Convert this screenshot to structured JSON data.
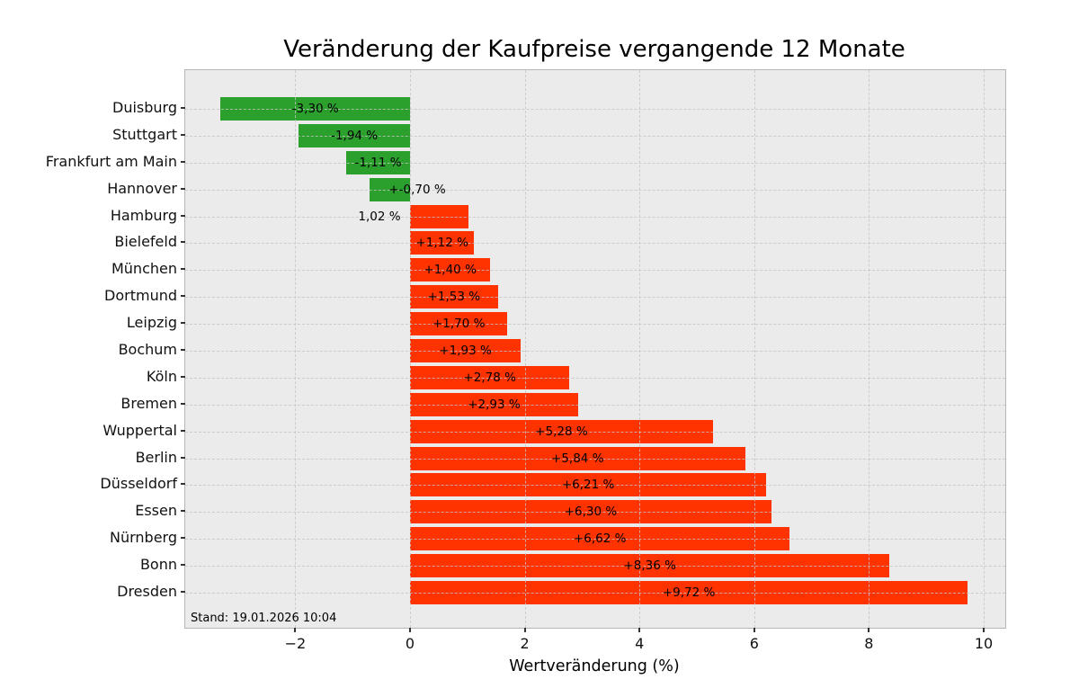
{
  "chart_data": {
    "type": "bar",
    "orientation": "horizontal",
    "title": "Veränderung der Kaufpreise vergangende 12 Monate",
    "xlabel": "Wertveränderung (%)",
    "ylabel": "",
    "footnote": "Stand: 19.01.2026 10:04",
    "xlim": [
      -3.92,
      10.38
    ],
    "xticks": [
      -2,
      0,
      2,
      4,
      6,
      8,
      10
    ],
    "xtick_labels": [
      "−2",
      "0",
      "2",
      "4",
      "6",
      "8",
      "10"
    ],
    "grid": {
      "style": "dashed",
      "drawn_over_bars": true
    },
    "legend": "none",
    "colors": {
      "negative_bar": "#2ca02c",
      "positive_bar": "#ff3300",
      "plot_background": "#ebebeb",
      "figure_background": "#ffffff",
      "grid_line": "#c4c4c4"
    },
    "categories": [
      "Duisburg",
      "Stuttgart",
      "Frankfurt am Main",
      "Hannover",
      "Hamburg",
      "Bielefeld",
      "München",
      "Dortmund",
      "Leipzig",
      "Bochum",
      "Köln",
      "Bremen",
      "Wuppertal",
      "Berlin",
      "Düsseldorf",
      "Essen",
      "Nürnberg",
      "Bonn",
      "Dresden"
    ],
    "values": [
      -3.3,
      -1.94,
      -1.11,
      -0.7,
      1.02,
      1.12,
      1.4,
      1.53,
      1.7,
      1.93,
      2.78,
      2.93,
      5.28,
      5.84,
      6.21,
      6.3,
      6.62,
      8.36,
      9.72
    ],
    "bar_labels": [
      "-3,30 %",
      "-1,94 %",
      "-1,11 %",
      "+-0,70 %",
      "1,02 %",
      "+1,12 %",
      "+1,40 %",
      "+1,53 %",
      "+1,70 %",
      "+1,93 %",
      "+2,78 %",
      "+2,93 %",
      "+5,28 %",
      "+5,84 %",
      "+6,21 %",
      "+6,30 %",
      "+6,62 %",
      "+8,36 %",
      "+9,72 %"
    ]
  }
}
